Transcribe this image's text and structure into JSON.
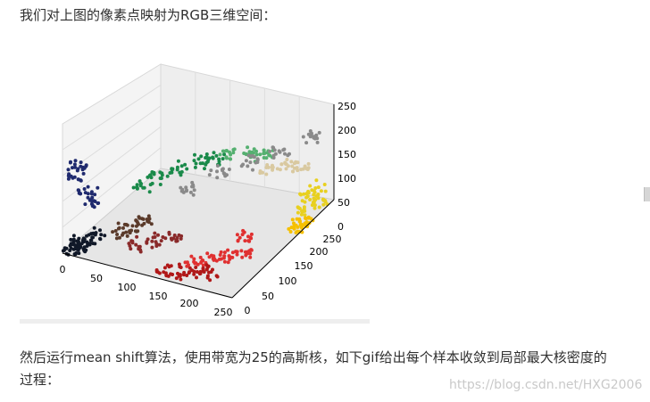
{
  "intro_text": "我们对上图的像素点映射为RGB三维空间：",
  "paragraph_text": "然后运行mean shift算法，使用带宽为25的高斯核，如下gif给出每个样本收敛到局部最大核密度的过程：",
  "watermark_text": "https://blog.csdn.net/HXG2006",
  "chart_data": {
    "type": "scatter",
    "projection": "3d",
    "title": "",
    "xlabel": "",
    "ylabel": "",
    "zlabel": "",
    "xlim": [
      0,
      255
    ],
    "ylim": [
      0,
      255
    ],
    "zlim": [
      0,
      255
    ],
    "x_ticks": [
      "0",
      "50",
      "100",
      "150",
      "200",
      "250"
    ],
    "y_ticks": [
      "0",
      "50",
      "100",
      "150",
      "200",
      "250"
    ],
    "z_ticks": [
      "0",
      "50",
      "100",
      "150",
      "200",
      "250"
    ],
    "grid": true,
    "clusters": [
      {
        "color": "#101828",
        "points": [
          [
            10,
            20,
            10
          ],
          [
            20,
            10,
            15
          ],
          [
            15,
            25,
            12
          ],
          [
            25,
            25,
            20
          ],
          [
            5,
            5,
            5
          ],
          [
            30,
            40,
            30
          ]
        ]
      },
      {
        "color": "#1f2a6e",
        "points": [
          [
            10,
            20,
            220
          ],
          [
            12,
            15,
            200
          ],
          [
            20,
            30,
            150
          ],
          [
            25,
            35,
            120
          ]
        ]
      },
      {
        "color": "#1a8a4a",
        "points": [
          [
            40,
            140,
            70
          ],
          [
            50,
            160,
            90
          ],
          [
            70,
            180,
            100
          ],
          [
            90,
            200,
            110
          ],
          [
            110,
            210,
            120
          ]
        ]
      },
      {
        "color": "#55b070",
        "points": [
          [
            120,
            220,
            130
          ],
          [
            150,
            230,
            130
          ],
          [
            170,
            235,
            140
          ]
        ]
      },
      {
        "color": "#8a8a8a",
        "points": [
          [
            120,
            120,
            120
          ],
          [
            150,
            150,
            150
          ],
          [
            180,
            180,
            170
          ],
          [
            210,
            200,
            190
          ],
          [
            240,
            230,
            220
          ]
        ]
      },
      {
        "color": "#d9c9a0",
        "points": [
          [
            200,
            190,
            150
          ],
          [
            220,
            210,
            150
          ],
          [
            230,
            220,
            140
          ]
        ]
      },
      {
        "color": "#e8d020",
        "points": [
          [
            240,
            230,
            60
          ],
          [
            245,
            235,
            80
          ],
          [
            250,
            240,
            40
          ],
          [
            235,
            220,
            30
          ]
        ]
      },
      {
        "color": "#f5c000",
        "points": [
          [
            250,
            200,
            20
          ],
          [
            245,
            190,
            10
          ],
          [
            240,
            210,
            15
          ]
        ]
      },
      {
        "color": "#e03030",
        "points": [
          [
            200,
            40,
            40
          ],
          [
            220,
            50,
            50
          ],
          [
            240,
            60,
            60
          ],
          [
            180,
            30,
            30
          ],
          [
            230,
            80,
            80
          ]
        ]
      },
      {
        "color": "#b01818",
        "points": [
          [
            150,
            10,
            10
          ],
          [
            170,
            15,
            15
          ],
          [
            190,
            20,
            20
          ],
          [
            210,
            25,
            25
          ]
        ]
      },
      {
        "color": "#8a2a2a",
        "points": [
          [
            90,
            40,
            30
          ],
          [
            110,
            50,
            40
          ],
          [
            130,
            60,
            50
          ]
        ]
      },
      {
        "color": "#5a3a2a",
        "points": [
          [
            60,
            50,
            40
          ],
          [
            70,
            60,
            50
          ],
          [
            80,
            70,
            60
          ]
        ]
      }
    ]
  }
}
